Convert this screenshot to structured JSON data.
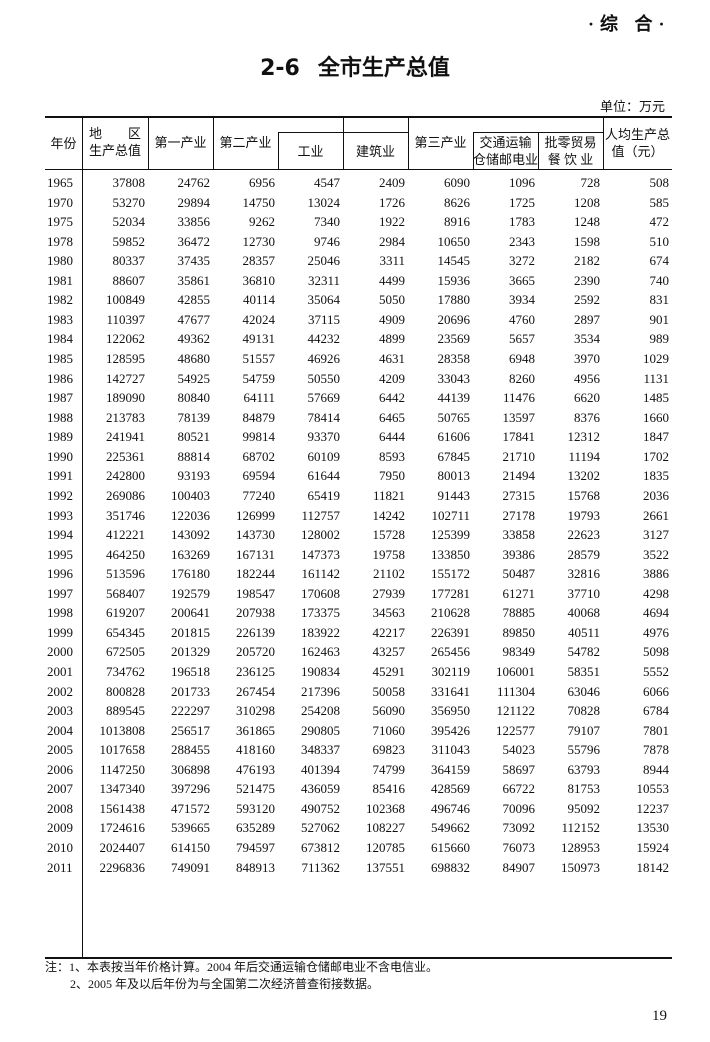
{
  "section": "·综 合·",
  "title": {
    "number": "2-6",
    "text": "全市生产总值"
  },
  "unit": "单位：万元",
  "table": {
    "headers": {
      "year": "年份",
      "gdp_line1": "地　　区",
      "gdp_line2": "生产总值",
      "primary": "第一产业",
      "secondary": "第二产业",
      "industry": "工业",
      "construction": "建筑业",
      "tertiary": "第三产业",
      "transport_line1": "交通运输",
      "transport_line2": "仓储邮电业",
      "trade_line1": "批零贸易",
      "trade_line2": "餐 饮 业",
      "per_capita_line1": "人均生产总",
      "per_capita_line2": "值（元）"
    },
    "rows": [
      [
        "1965",
        "37808",
        "24762",
        "6956",
        "4547",
        "2409",
        "6090",
        "1096",
        "728",
        "508"
      ],
      [
        "1970",
        "53270",
        "29894",
        "14750",
        "13024",
        "1726",
        "8626",
        "1725",
        "1208",
        "585"
      ],
      [
        "1975",
        "52034",
        "33856",
        "9262",
        "7340",
        "1922",
        "8916",
        "1783",
        "1248",
        "472"
      ],
      [
        "1978",
        "59852",
        "36472",
        "12730",
        "9746",
        "2984",
        "10650",
        "2343",
        "1598",
        "510"
      ],
      [
        "1980",
        "80337",
        "37435",
        "28357",
        "25046",
        "3311",
        "14545",
        "3272",
        "2182",
        "674"
      ],
      [
        "1981",
        "88607",
        "35861",
        "36810",
        "32311",
        "4499",
        "15936",
        "3665",
        "2390",
        "740"
      ],
      [
        "1982",
        "100849",
        "42855",
        "40114",
        "35064",
        "5050",
        "17880",
        "3934",
        "2592",
        "831"
      ],
      [
        "1983",
        "110397",
        "47677",
        "42024",
        "37115",
        "4909",
        "20696",
        "4760",
        "2897",
        "901"
      ],
      [
        "1984",
        "122062",
        "49362",
        "49131",
        "44232",
        "4899",
        "23569",
        "5657",
        "3534",
        "989"
      ],
      [
        "1985",
        "128595",
        "48680",
        "51557",
        "46926",
        "4631",
        "28358",
        "6948",
        "3970",
        "1029"
      ],
      [
        "1986",
        "142727",
        "54925",
        "54759",
        "50550",
        "4209",
        "33043",
        "8260",
        "4956",
        "1131"
      ],
      [
        "1987",
        "189090",
        "80840",
        "64111",
        "57669",
        "6442",
        "44139",
        "11476",
        "6620",
        "1485"
      ],
      [
        "1988",
        "213783",
        "78139",
        "84879",
        "78414",
        "6465",
        "50765",
        "13597",
        "8376",
        "1660"
      ],
      [
        "1989",
        "241941",
        "80521",
        "99814",
        "93370",
        "6444",
        "61606",
        "17841",
        "12312",
        "1847"
      ],
      [
        "1990",
        "225361",
        "88814",
        "68702",
        "60109",
        "8593",
        "67845",
        "21710",
        "11194",
        "1702"
      ],
      [
        "1991",
        "242800",
        "93193",
        "69594",
        "61644",
        "7950",
        "80013",
        "21494",
        "13202",
        "1835"
      ],
      [
        "1992",
        "269086",
        "100403",
        "77240",
        "65419",
        "11821",
        "91443",
        "27315",
        "15768",
        "2036"
      ],
      [
        "1993",
        "351746",
        "122036",
        "126999",
        "112757",
        "14242",
        "102711",
        "27178",
        "19793",
        "2661"
      ],
      [
        "1994",
        "412221",
        "143092",
        "143730",
        "128002",
        "15728",
        "125399",
        "33858",
        "22623",
        "3127"
      ],
      [
        "1995",
        "464250",
        "163269",
        "167131",
        "147373",
        "19758",
        "133850",
        "39386",
        "28579",
        "3522"
      ],
      [
        "1996",
        "513596",
        "176180",
        "182244",
        "161142",
        "21102",
        "155172",
        "50487",
        "32816",
        "3886"
      ],
      [
        "1997",
        "568407",
        "192579",
        "198547",
        "170608",
        "27939",
        "177281",
        "61271",
        "37710",
        "4298"
      ],
      [
        "1998",
        "619207",
        "200641",
        "207938",
        "173375",
        "34563",
        "210628",
        "78885",
        "40068",
        "4694"
      ],
      [
        "1999",
        "654345",
        "201815",
        "226139",
        "183922",
        "42217",
        "226391",
        "89850",
        "40511",
        "4976"
      ],
      [
        "2000",
        "672505",
        "201329",
        "205720",
        "162463",
        "43257",
        "265456",
        "98349",
        "54782",
        "5098"
      ],
      [
        "2001",
        "734762",
        "196518",
        "236125",
        "190834",
        "45291",
        "302119",
        "106001",
        "58351",
        "5552"
      ],
      [
        "2002",
        "800828",
        "201733",
        "267454",
        "217396",
        "50058",
        "331641",
        "111304",
        "63046",
        "6066"
      ],
      [
        "2003",
        "889545",
        "222297",
        "310298",
        "254208",
        "56090",
        "356950",
        "121122",
        "70828",
        "6784"
      ],
      [
        "2004",
        "1013808",
        "256517",
        "361865",
        "290805",
        "71060",
        "395426",
        "122577",
        "79107",
        "7801"
      ],
      [
        "2005",
        "1017658",
        "288455",
        "418160",
        "348337",
        "69823",
        "311043",
        "54023",
        "55796",
        "7878"
      ],
      [
        "2006",
        "1147250",
        "306898",
        "476193",
        "401394",
        "74799",
        "364159",
        "58697",
        "63793",
        "8944"
      ],
      [
        "2007",
        "1347340",
        "397296",
        "521475",
        "436059",
        "85416",
        "428569",
        "66722",
        "81753",
        "10553"
      ],
      [
        "2008",
        "1561438",
        "471572",
        "593120",
        "490752",
        "102368",
        "496746",
        "70096",
        "95092",
        "12237"
      ],
      [
        "2009",
        "1724616",
        "539665",
        "635289",
        "527062",
        "108227",
        "549662",
        "73092",
        "112152",
        "13530"
      ],
      [
        "2010",
        "2024407",
        "614150",
        "794597",
        "673812",
        "120785",
        "615660",
        "76073",
        "128953",
        "15924"
      ],
      [
        "2011",
        "2296836",
        "749091",
        "848913",
        "711362",
        "137551",
        "698832",
        "84907",
        "150973",
        "18142"
      ]
    ]
  },
  "notes": [
    "注：1、本表按当年价格计算。2004 年后交通运输仓储邮电业不含电信业。",
    "2、2005 年及以后年份为与全国第二次经济普查衔接数据。"
  ],
  "page_number": "19"
}
